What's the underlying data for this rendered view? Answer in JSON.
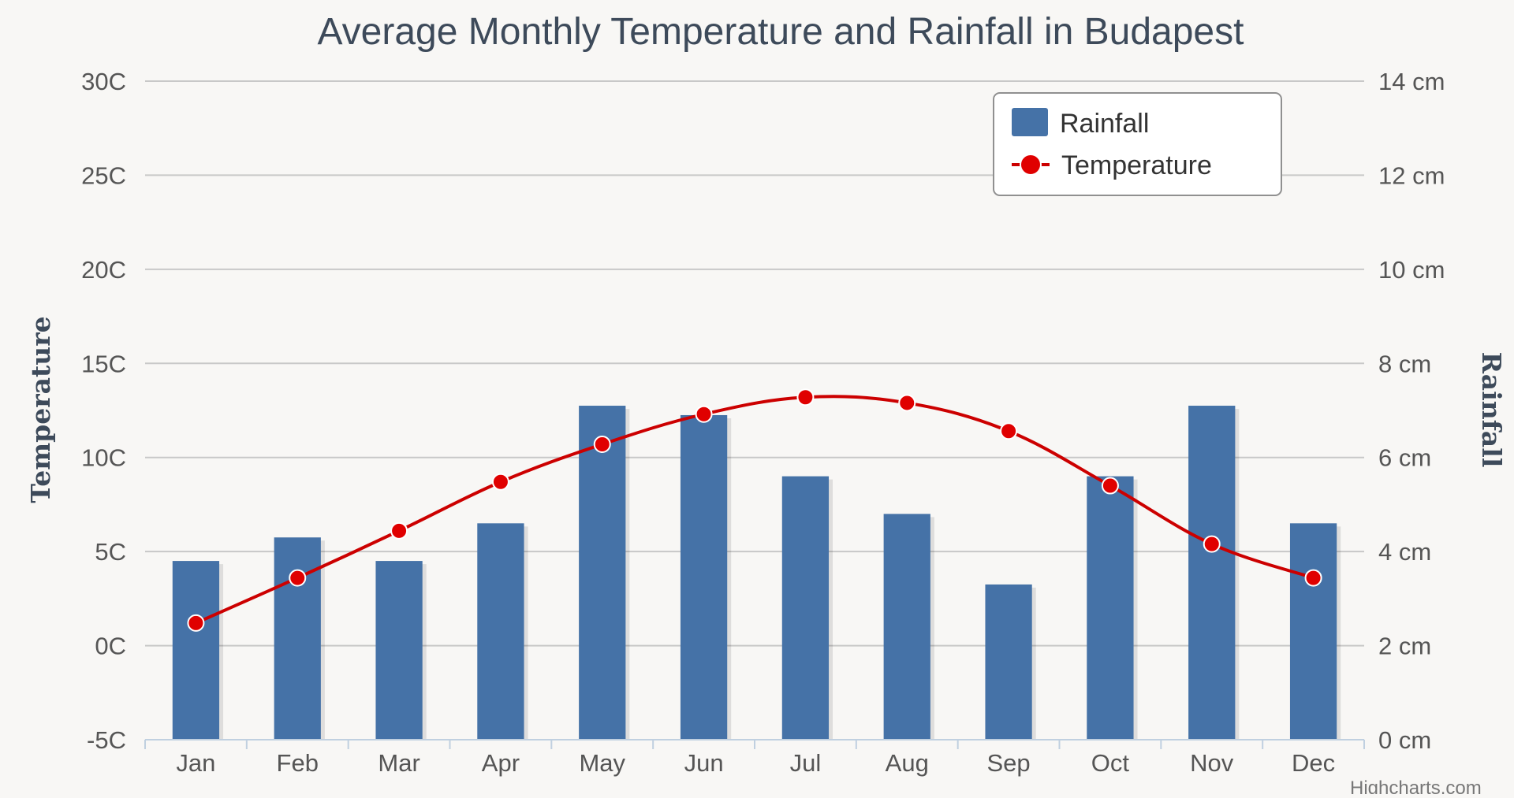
{
  "chart_data": {
    "type": "bar+line",
    "title": "Average Monthly Temperature and Rainfall in Budapest",
    "categories": [
      "Jan",
      "Feb",
      "Mar",
      "Apr",
      "May",
      "Jun",
      "Jul",
      "Aug",
      "Sep",
      "Oct",
      "Nov",
      "Dec"
    ],
    "series": [
      {
        "name": "Rainfall",
        "type": "bar",
        "axis": "right",
        "unit": "cm",
        "color": "#4572a7",
        "values": [
          3.8,
          4.3,
          3.8,
          4.6,
          7.1,
          6.9,
          5.6,
          4.8,
          3.3,
          5.6,
          7.1,
          4.6
        ]
      },
      {
        "name": "Temperature",
        "type": "line",
        "axis": "left",
        "unit": "C",
        "color": "#e00000",
        "values": [
          1.2,
          3.6,
          6.1,
          8.7,
          10.7,
          12.3,
          13.2,
          12.9,
          11.4,
          8.5,
          5.4,
          3.6
        ]
      }
    ],
    "left_axis": {
      "title": "Temperature",
      "ticks": [
        "-5C",
        "0C",
        "5C",
        "10C",
        "15C",
        "20C",
        "25C",
        "30C"
      ],
      "range": [
        -5,
        30
      ]
    },
    "right_axis": {
      "title": "Rainfall",
      "ticks": [
        "0 cm",
        "2 cm",
        "4 cm",
        "6 cm",
        "8 cm",
        "10 cm",
        "12 cm",
        "14 cm"
      ],
      "range": [
        0,
        14
      ]
    },
    "legend": {
      "placement": "top-right",
      "items": [
        "Rainfall",
        "Temperature"
      ]
    },
    "credit": "Highcharts.com",
    "grid": true
  },
  "colors": {
    "background": "#f8f7f5",
    "bar": "#4572a7",
    "line": "#cc0000",
    "marker": "#e00000",
    "grid": "#c8c8c8"
  }
}
